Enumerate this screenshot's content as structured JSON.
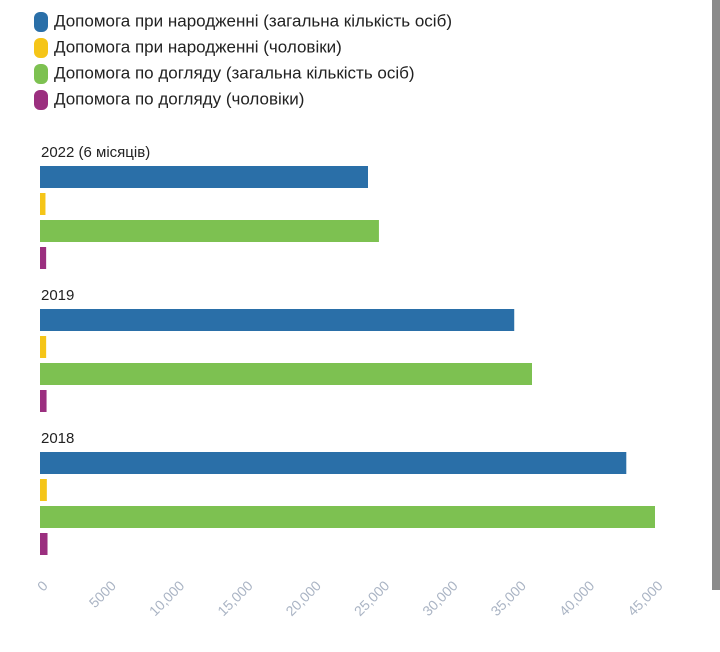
{
  "chart_data": {
    "type": "bar",
    "orientation": "horizontal",
    "categories": [
      "2022 (6 місяців)",
      "2019",
      "2018"
    ],
    "series": [
      {
        "name": "Допомога при народженні (загальна кількість осіб)",
        "color": "#2a6fa8",
        "values": [
          24000,
          34700,
          42900
        ]
      },
      {
        "name": "Допомога при народженні (чоловіки)",
        "color": "#f5c518",
        "values": [
          400,
          450,
          500
        ]
      },
      {
        "name": "Допомога по догляду (загальна кількість осіб)",
        "color": "#7dc151",
        "values": [
          24800,
          36000,
          45000
        ]
      },
      {
        "name": "Допомога по догляду (чоловіки)",
        "color": "#9b2f7f",
        "values": [
          450,
          480,
          550
        ]
      }
    ],
    "xlim": [
      0,
      45000
    ],
    "xticks": [
      0,
      5000,
      {
        "value": 10000,
        "label": "10,000"
      },
      {
        "value": 15000,
        "label": "15,000"
      },
      {
        "value": 20000,
        "label": "20,000"
      },
      {
        "value": 25000,
        "label": "25,000"
      },
      {
        "value": 30000,
        "label": "30,000"
      },
      {
        "value": 35000,
        "label": "35,000"
      },
      {
        "value": 40000,
        "label": "40,000"
      },
      {
        "value": 45000,
        "label": "45,000"
      }
    ]
  }
}
